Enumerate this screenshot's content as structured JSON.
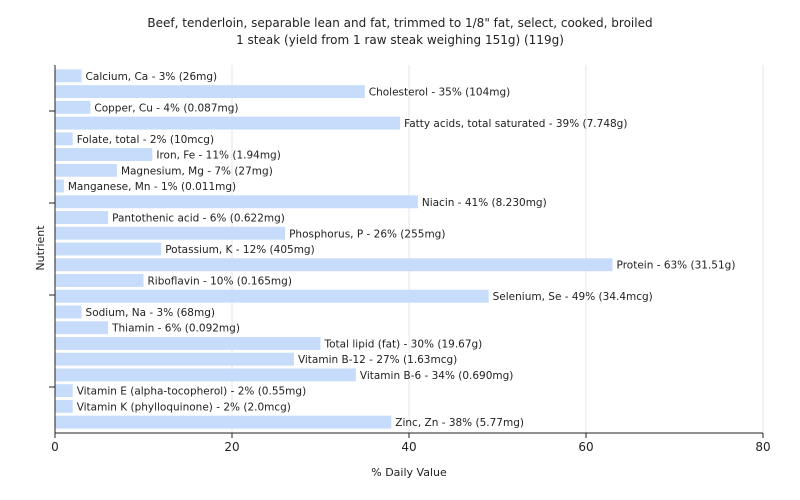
{
  "chart_data": {
    "type": "bar",
    "orientation": "horizontal",
    "title": "Beef, tenderloin, separable lean and fat, trimmed to 1/8\" fat, select, cooked, broiled",
    "subtitle": "1 steak (yield from 1 raw steak weighing 151g) (119g)",
    "xlabel": "% Daily Value",
    "ylabel": "Nutrient",
    "xlim": [
      0,
      80
    ],
    "xticks": [
      "0",
      "20",
      "40",
      "60",
      "80"
    ],
    "grid": true,
    "bar_color": "#c6dcfa",
    "categories": [
      "Calcium, Ca",
      "Cholesterol",
      "Copper, Cu",
      "Fatty acids, total saturated",
      "Folate, total",
      "Iron, Fe",
      "Magnesium, Mg",
      "Manganese, Mn",
      "Niacin",
      "Pantothenic acid",
      "Phosphorus, P",
      "Potassium, K",
      "Protein",
      "Riboflavin",
      "Selenium, Se",
      "Sodium, Na",
      "Thiamin",
      "Total lipid (fat)",
      "Vitamin B-12",
      "Vitamin B-6",
      "Vitamin E (alpha-tocopherol)",
      "Vitamin K (phylloquinone)",
      "Zinc, Zn"
    ],
    "values": [
      3,
      35,
      4,
      39,
      2,
      11,
      7,
      1,
      41,
      6,
      26,
      12,
      63,
      10,
      49,
      3,
      6,
      30,
      27,
      34,
      2,
      2,
      38
    ],
    "labels": [
      "Calcium, Ca - 3% (26mg)",
      "Cholesterol - 35% (104mg)",
      "Copper, Cu - 4% (0.087mg)",
      "Fatty acids, total saturated - 39% (7.748g)",
      "Folate, total - 2% (10mcg)",
      "Iron, Fe - 11% (1.94mg)",
      "Magnesium, Mg - 7% (27mg)",
      "Manganese, Mn - 1% (0.011mg)",
      "Niacin - 41% (8.230mg)",
      "Pantothenic acid - 6% (0.622mg)",
      "Phosphorus, P - 26% (255mg)",
      "Potassium, K - 12% (405mg)",
      "Protein - 63% (31.51g)",
      "Riboflavin - 10% (0.165mg)",
      "Selenium, Se - 49% (34.4mcg)",
      "Sodium, Na - 3% (68mg)",
      "Thiamin - 6% (0.092mg)",
      "Total lipid (fat) - 30% (19.67g)",
      "Vitamin B-12 - 27% (1.63mcg)",
      "Vitamin B-6 - 34% (0.690mg)",
      "Vitamin E (alpha-tocopherol) - 2% (0.55mg)",
      "Vitamin K (phylloquinone) - 2% (2.0mcg)",
      "Zinc, Zn - 38% (5.77mg)"
    ]
  }
}
